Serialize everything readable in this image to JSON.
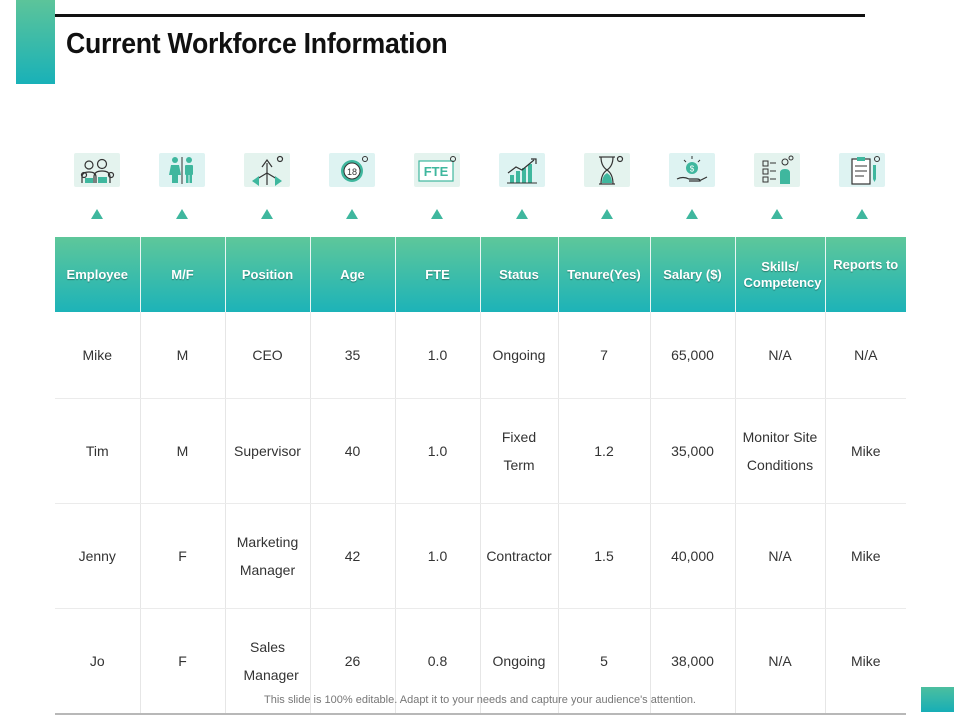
{
  "title": "Current Workforce Information",
  "icons": [
    {
      "name": "employees-icon",
      "bg": "#e4f3ee"
    },
    {
      "name": "gender-icon",
      "bg": "#def3f2"
    },
    {
      "name": "position-arrows-icon",
      "bg": "#e4f3ee"
    },
    {
      "name": "age-18-icon",
      "bg": "#def3f2"
    },
    {
      "name": "fte-icon",
      "bg": "#e4f3ee",
      "text": "FTE"
    },
    {
      "name": "status-chart-icon",
      "bg": "#def3f2"
    },
    {
      "name": "hourglass-icon",
      "bg": "#e4f3ee"
    },
    {
      "name": "salary-hand-coin-icon",
      "bg": "#def3f2"
    },
    {
      "name": "skills-checklist-icon",
      "bg": "#e4f3ee"
    },
    {
      "name": "clipboard-icon",
      "bg": "#def3f2"
    }
  ],
  "table": {
    "headers": [
      "Employee",
      "M/F",
      "Position",
      "Age",
      "FTE",
      "Status",
      "Tenure(Yes)",
      "Salary ($)",
      "Skills/ Competency",
      "Reports to"
    ],
    "rows": [
      [
        "Mike",
        "M",
        "CEO",
        "35",
        "1.0",
        "Ongoing",
        "7",
        "65,000",
        "N/A",
        "N/A"
      ],
      [
        "Tim",
        "M",
        "Supervisor",
        "40",
        "1.0",
        "Fixed Term",
        "1.2",
        "35,000",
        "Monitor Site Conditions",
        "Mike"
      ],
      [
        "Jenny",
        "F",
        "Marketing Manager",
        "42",
        "1.0",
        "Contractor",
        "1.5",
        "40,000",
        "N/A",
        "Mike"
      ],
      [
        "Jo",
        "F",
        "Sales Manager",
        "26",
        "0.8",
        "Ongoing",
        "5",
        "38,000",
        "N/A",
        "Mike"
      ]
    ]
  },
  "footer": "This slide is 100% editable. Adapt it to your needs and capture your audience's attention.",
  "colors": {
    "accent_green": "#5ec79a",
    "accent_teal": "#1db3b8",
    "title": "#111111"
  }
}
